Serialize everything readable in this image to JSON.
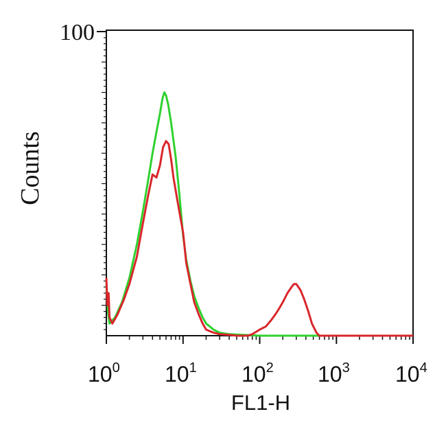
{
  "chart_data": {
    "type": "line",
    "xscale": "log",
    "xlim": [
      1,
      10000
    ],
    "ylim": [
      0,
      100
    ],
    "xlabel": "FL1-H",
    "ylabel": "Counts",
    "yticks": [
      {
        "value": 100,
        "label": "100"
      }
    ],
    "xticks": [
      {
        "value": 1,
        "base": "10",
        "exp": "0"
      },
      {
        "value": 10,
        "base": "10",
        "exp": "1"
      },
      {
        "value": 100,
        "base": "10",
        "exp": "2"
      },
      {
        "value": 1000,
        "base": "10",
        "exp": "3"
      },
      {
        "value": 10000,
        "base": "10",
        "exp": "4"
      }
    ],
    "grid": false,
    "legend": "none",
    "series": [
      {
        "color": "#2fd12f",
        "x": [
          1,
          1.05,
          1.1,
          1.3,
          1.6,
          2,
          2.5,
          3,
          3.5,
          4,
          4.5,
          5,
          5.4,
          5.7,
          6,
          6.4,
          7,
          8,
          9,
          10,
          11,
          12.5,
          14,
          16,
          18,
          20,
          25,
          30,
          40,
          60,
          100,
          10000
        ],
        "y": [
          17,
          8,
          4,
          6,
          11,
          19,
          30,
          41,
          51,
          60,
          67,
          73,
          78,
          80,
          79,
          76,
          70,
          59,
          46,
          33,
          25,
          18,
          13,
          9,
          6,
          4,
          2,
          1,
          0.5,
          0.3,
          0,
          0
        ]
      },
      {
        "color": "#d9262b",
        "x": [
          1,
          1.03,
          1.07,
          1.1,
          1.2,
          1.4,
          1.7,
          2,
          2.5,
          3,
          3.5,
          4,
          4.5,
          5,
          5.5,
          6,
          6.5,
          7,
          7.5,
          8.5,
          10,
          11,
          12.5,
          14,
          16,
          18,
          20,
          25,
          30,
          40,
          50,
          60,
          70,
          80,
          100,
          120,
          140,
          160,
          180,
          200,
          230,
          260,
          280,
          300,
          340,
          380,
          430,
          480,
          550,
          600,
          700,
          10000
        ],
        "y": [
          19,
          10,
          14,
          6,
          4,
          7,
          12,
          17,
          26,
          37,
          46,
          53,
          52,
          56,
          62,
          64,
          63,
          58,
          52,
          44,
          34,
          24,
          17,
          11,
          7,
          4,
          2,
          1,
          0.5,
          0.3,
          0,
          0,
          0,
          0.5,
          2,
          3,
          5,
          7,
          9,
          11,
          14,
          16,
          17,
          17,
          15,
          12,
          8,
          4,
          1,
          0,
          0,
          0
        ]
      }
    ]
  }
}
